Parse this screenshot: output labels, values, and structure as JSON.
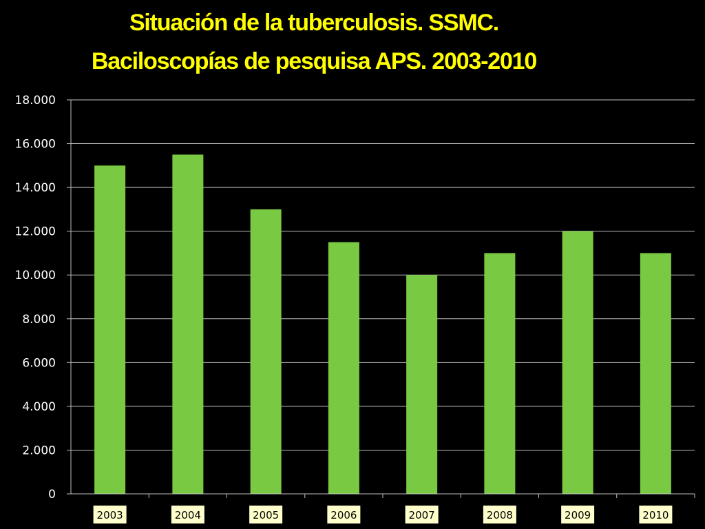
{
  "slide": {
    "title_line_1": "Situación de la tuberculosis. SSMC.",
    "title_line_2": "Baciloscopías de pesquisa APS.  2003-2010"
  },
  "colors": {
    "background": "#000000",
    "title": "#ffff00",
    "bar": "#7ac943",
    "gridline": "#bfbfbf",
    "axis_text": "#ffffff",
    "category_label_bg": "#ffffcc"
  },
  "chart_data": {
    "type": "bar",
    "title": "",
    "xlabel": "",
    "ylabel": "",
    "categories": [
      "2003",
      "2004",
      "2005",
      "2006",
      "2007",
      "2008",
      "2009",
      "2010"
    ],
    "values": [
      15000,
      15500,
      13000,
      11500,
      10000,
      11000,
      12000,
      11000
    ],
    "ylim": [
      0,
      18000
    ],
    "yticks": [
      0,
      2000,
      4000,
      6000,
      8000,
      10000,
      12000,
      14000,
      16000,
      18000
    ],
    "ytick_labels": [
      "0",
      "2.000",
      "4.000",
      "6.000",
      "8.000",
      "10.000",
      "12.000",
      "14.000",
      "16.000",
      "18.000"
    ],
    "grid": true,
    "legend": "none"
  }
}
